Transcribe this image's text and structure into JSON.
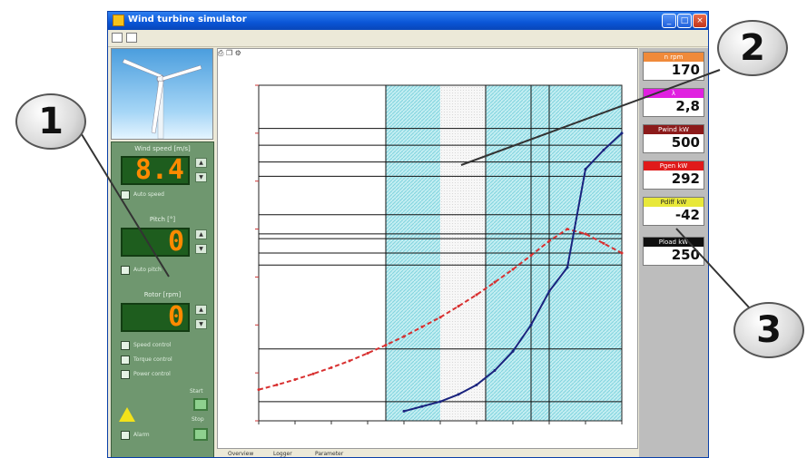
{
  "window": {
    "title": "Wind turbine simulator"
  },
  "left_panel": {
    "sections": [
      {
        "label": "Wind speed [m/s]",
        "value": "8.4",
        "checkbox_label": "Auto speed"
      },
      {
        "label": "Pitch [°]",
        "value": "0",
        "checkbox_label": "Auto pitch"
      },
      {
        "label": "Rotor [rpm]",
        "value": "0",
        "checkbox_label": ""
      }
    ],
    "mode_options": [
      "Speed control",
      "Torque control",
      "Power control"
    ],
    "btn_start_label": "Start",
    "btn_stop_label": "Stop",
    "alarm_label": "Alarm"
  },
  "status_tabs": [
    "Overview",
    "Logger",
    "Parameter"
  ],
  "right_panel": {
    "tiles": [
      {
        "label": "n rpm",
        "value": "170",
        "color": "#f08a3a"
      },
      {
        "label": "λ",
        "value": "2,8",
        "color": "#e020e0"
      },
      {
        "label": "Pwind kW",
        "value": "500",
        "color": "#8c1a1a"
      },
      {
        "label": "Pgen kW",
        "value": "292",
        "color": "#e01a1a"
      },
      {
        "label": "Pdiff kW",
        "value": "-42",
        "color": "#e8e83a"
      },
      {
        "label": "Pload kW",
        "value": "250",
        "color": "#101010"
      }
    ]
  },
  "callouts": [
    "1",
    "2",
    "3"
  ],
  "chart_data": {
    "type": "line",
    "x": [
      0,
      20,
      40,
      60,
      80,
      100,
      120,
      140,
      160,
      180,
      200,
      220,
      240,
      260,
      280,
      300,
      320,
      340,
      360,
      380,
      400
    ],
    "series": [
      {
        "values": [
          130,
          150,
          172,
          196,
          222,
          250,
          282,
          316,
          352,
          392,
          432,
          478,
          526,
          578,
          632,
          690,
          750,
          800,
          780,
          740,
          700
        ],
        "color": "#d83030",
        "style": "dashed"
      },
      {
        "values": [
          null,
          null,
          null,
          null,
          null,
          null,
          null,
          null,
          40,
          60,
          80,
          110,
          150,
          210,
          290,
          400,
          540,
          640,
          1050,
          1130,
          1200
        ],
        "color": "#1a237e",
        "style": "solid"
      }
    ],
    "xlim": [
      0,
      400
    ],
    "ylim": [
      0,
      1400
    ],
    "grid": true,
    "hlines": [
      80,
      300,
      650,
      700,
      760,
      780,
      860,
      1020,
      1080,
      1150,
      1220
    ],
    "bands": [
      {
        "from": 140,
        "to": 200,
        "type": "hatched"
      },
      {
        "from": 200,
        "to": 250,
        "type": "dotted"
      },
      {
        "from": 250,
        "to": 330,
        "type": "hatched"
      },
      {
        "from": 330,
        "to": 400,
        "type": "hatched"
      }
    ],
    "vlines": [
      140,
      250,
      300,
      320
    ]
  }
}
